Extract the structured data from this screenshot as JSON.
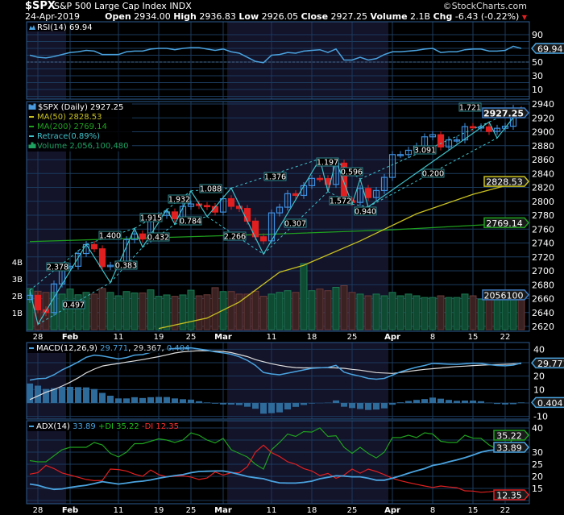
{
  "header": {
    "symbol": "$SPX",
    "name": "S&P 500 Large Cap Index",
    "exchange": "INDX",
    "copyright": "©StockCharts.com",
    "date": "24-Apr-2019",
    "open_label": "Open",
    "open": "2934.00",
    "high_label": "High",
    "high": "2936.83",
    "low_label": "Low",
    "low": "2926.05",
    "close_label": "Close",
    "close": "2927.25",
    "volume_label": "Volume",
    "volume": "2.1B",
    "chg_label": "Chg",
    "chg": "-6.43 (-0.22%)",
    "chg_icon": "down-triangle-icon"
  },
  "chart_data": {
    "type": "candlestick",
    "colors": {
      "up": "#3d8fe0",
      "down": "#e02020",
      "ma50": "#c8c020",
      "ma200": "#1fa01f",
      "retrace": "#3fc1c9",
      "indicator": "#4aa3df",
      "signal": "#dddddd",
      "plus_di": "#1fa01f",
      "minus_di": "#e02020",
      "vol_up": "#0f4a32",
      "vol_down": "#3a2222"
    },
    "dates": [
      "2019-01-25",
      "2019-01-28",
      "2019-01-29",
      "2019-01-30",
      "2019-01-31",
      "2019-02-01",
      "2019-02-04",
      "2019-02-05",
      "2019-02-06",
      "2019-02-07",
      "2019-02-08",
      "2019-02-11",
      "2019-02-12",
      "2019-02-13",
      "2019-02-14",
      "2019-02-15",
      "2019-02-19",
      "2019-02-20",
      "2019-02-21",
      "2019-02-22",
      "2019-02-25",
      "2019-02-26",
      "2019-02-27",
      "2019-02-28",
      "2019-03-01",
      "2019-03-04",
      "2019-03-05",
      "2019-03-06",
      "2019-03-07",
      "2019-03-08",
      "2019-03-11",
      "2019-03-12",
      "2019-03-13",
      "2019-03-14",
      "2019-03-15",
      "2019-03-18",
      "2019-03-19",
      "2019-03-20",
      "2019-03-21",
      "2019-03-22",
      "2019-03-25",
      "2019-03-26",
      "2019-03-27",
      "2019-03-28",
      "2019-03-29",
      "2019-04-01",
      "2019-04-02",
      "2019-04-03",
      "2019-04-04",
      "2019-04-05",
      "2019-04-08",
      "2019-04-09",
      "2019-04-10",
      "2019-04-11",
      "2019-04-12",
      "2019-04-15",
      "2019-04-16",
      "2019-04-17",
      "2019-04-18",
      "2019-04-22",
      "2019-04-23",
      "2019-04-24"
    ],
    "x_ticks": [
      {
        "date": "2019-01-28",
        "label": "28"
      },
      {
        "date": "2019-02-01",
        "label": "Feb"
      },
      {
        "date": "2019-02-11",
        "label": "11"
      },
      {
        "date": "2019-02-19",
        "label": "19"
      },
      {
        "date": "2019-02-25",
        "label": "25"
      },
      {
        "date": "2019-03-01",
        "label": "Mar"
      },
      {
        "date": "2019-03-11",
        "label": "11"
      },
      {
        "date": "2019-03-18",
        "label": "18"
      },
      {
        "date": "2019-03-25",
        "label": "25"
      },
      {
        "date": "2019-04-01",
        "label": "Apr"
      },
      {
        "date": "2019-04-08",
        "label": "8"
      },
      {
        "date": "2019-04-15",
        "label": "15"
      },
      {
        "date": "2019-04-22",
        "label": "22"
      }
    ],
    "rsi": {
      "legend": "RSI(14) 69.94",
      "tag": "69.94",
      "ylim": [
        -5,
        100
      ],
      "ticks": [
        "90",
        "70",
        "50",
        "30",
        "10"
      ],
      "values": [
        60,
        57,
        56,
        58,
        61,
        64,
        65,
        67,
        66,
        61,
        61,
        61,
        65,
        66,
        66,
        69,
        70,
        70,
        68,
        70,
        71,
        71,
        69,
        67,
        69,
        65,
        63,
        57,
        51,
        49,
        60,
        61,
        64,
        63,
        66,
        67,
        68,
        64,
        69,
        53,
        53,
        57,
        53,
        55,
        61,
        65,
        65,
        66,
        67,
        69,
        70,
        64,
        65,
        65,
        68,
        69,
        69,
        66,
        66,
        67,
        73,
        69.94
      ]
    },
    "price": {
      "legend": "$SPX (Daily) 2927.25",
      "tag": "2927.25",
      "ylim": [
        2615,
        2945
      ],
      "ticks": [
        "2940",
        "2920",
        "2900",
        "2880",
        "2860",
        "2840",
        "2820",
        "2800",
        "2780",
        "2760",
        "2740",
        "2720",
        "2700",
        "2680",
        "2660",
        "2640",
        "2620"
      ],
      "close": [
        2664.76,
        2643.85,
        2640.0,
        2681.05,
        2704.1,
        2706.53,
        2724.87,
        2737.7,
        2731.61,
        2706.05,
        2707.88,
        2709.8,
        2744.73,
        2753.03,
        2745.73,
        2775.6,
        2779.76,
        2784.7,
        2774.88,
        2792.67,
        2796.11,
        2793.9,
        2792.38,
        2784.49,
        2803.69,
        2792.81,
        2789.65,
        2771.45,
        2748.93,
        2743.07,
        2783.3,
        2791.52,
        2810.92,
        2808.48,
        2822.48,
        2832.94,
        2832.57,
        2824.23,
        2854.88,
        2800.71,
        2798.36,
        2818.46,
        2805.37,
        2815.44,
        2834.4,
        2867.19,
        2867.24,
        2873.4,
        2879.39,
        2892.74,
        2895.77,
        2878.2,
        2888.21,
        2888.32,
        2907.41,
        2905.58,
        2907.06,
        2900.45,
        2905.03,
        2907.97,
        2933.68,
        2927.25
      ]
    },
    "ma50": {
      "legend": "MA(50) 2828.53",
      "tag": "2828.53",
      "points": [
        [
          "2019-02-19",
          2617
        ],
        [
          "2019-02-27",
          2632
        ],
        [
          "2019-03-05",
          2655
        ],
        [
          "2019-03-12",
          2698
        ],
        [
          "2019-03-15",
          2708
        ],
        [
          "2019-03-26",
          2743
        ],
        [
          "2019-04-04",
          2782
        ],
        [
          "2019-04-15",
          2810
        ],
        [
          "2019-04-24",
          2828.53
        ]
      ]
    },
    "ma200": {
      "legend": "MA(200) 2769.14",
      "tag": "2769.14",
      "points": [
        [
          "2019-01-25",
          2742
        ],
        [
          "2019-03-12",
          2753
        ],
        [
          "2019-04-01",
          2759
        ],
        [
          "2019-04-24",
          2769.14
        ]
      ]
    },
    "retrace": {
      "legend": "Retrace(0.89%)",
      "pivots": [
        [
          "2019-01-25",
          2672
        ],
        [
          "2019-01-28",
          2623
        ],
        [
          "2019-02-05",
          2738
        ],
        [
          "2019-02-08",
          2683
        ],
        [
          "2019-02-13",
          2761
        ],
        [
          "2019-02-14",
          2734
        ],
        [
          "2019-02-20",
          2788
        ],
        [
          "2019-02-21",
          2767
        ],
        [
          "2019-02-25",
          2815
        ],
        [
          "2019-02-27",
          2778
        ],
        [
          "2019-03-04",
          2819
        ],
        [
          "2019-03-08",
          2724
        ],
        [
          "2019-03-19",
          2861
        ],
        [
          "2019-03-20",
          2814
        ],
        [
          "2019-03-21",
          2858
        ],
        [
          "2019-03-25",
          2796
        ],
        [
          "2019-03-26",
          2832
        ],
        [
          "2019-03-27",
          2792
        ],
        [
          "2019-04-17",
          2914
        ],
        [
          "2019-04-18",
          2891
        ],
        [
          "2019-04-24",
          2935
        ]
      ],
      "labels": [
        "2.378",
        "0.497",
        "1.400",
        "0.383",
        "1.915",
        "0.432",
        "1.932",
        "0.784",
        "1.088",
        "2.266",
        "1.376",
        "0.307",
        "1.197",
        "0.596",
        "1.572",
        "0.940",
        "3.091",
        "0.200",
        "1.721"
      ]
    },
    "volume": {
      "legend": "Volume 2,056,100,480",
      "tag": "2056100",
      "unit": "B",
      "ticks": [
        "4B",
        "3B",
        "2B",
        "1B"
      ],
      "values": [
        2.43,
        2.27,
        2.2,
        2.2,
        2.1,
        2.4,
        2.06,
        2.2,
        2.1,
        2.43,
        2.2,
        2.0,
        2.25,
        2.17,
        2.17,
        2.35,
        1.97,
        2.05,
        1.97,
        2.05,
        2.33,
        2.0,
        2.06,
        2.48,
        2.25,
        2.25,
        2.1,
        2.1,
        2.27,
        1.97,
        2.1,
        2.2,
        2.3,
        2.2,
        3.9,
        2.3,
        2.4,
        2.3,
        2.5,
        2.6,
        2.2,
        2.1,
        2.0,
        2.1,
        2.0,
        2.2,
        2.0,
        2.1,
        2.0,
        1.9,
        1.9,
        2.0,
        1.9,
        1.9,
        2.1,
        2.0,
        1.8,
        2.3,
        2.1,
        2.0,
        2.3,
        2.056
      ]
    },
    "macd": {
      "legend": "MACD(12,26,9)",
      "macd_value": "29.771",
      "signal_value": "29.367",
      "hist_value": "0.404",
      "tag": "29.771",
      "hist_tag": "0.404",
      "ticks": [
        "40",
        "20",
        "10",
        "-10"
      ],
      "macd": [
        17,
        18.1,
        18.4,
        21,
        24.6,
        27.4,
        30.5,
        34,
        35.6,
        35,
        33.9,
        32.8,
        33.8,
        35.6,
        36,
        37.7,
        39,
        40.2,
        40.6,
        40.9,
        41,
        40.2,
        39.2,
        38.1,
        37.3,
        36.3,
        34.4,
        31.7,
        28,
        22.7,
        21.6,
        21,
        22.2,
        23.4,
        24.6,
        25.8,
        26.2,
        26.5,
        28,
        23,
        21.2,
        19.9,
        18.3,
        17.7,
        18.3,
        20.7,
        23.2,
        25,
        26.6,
        27.9,
        29.5,
        29.2,
        28.9,
        28.7,
        29.2,
        29.6,
        29.4,
        28.6,
        27.9,
        27.7,
        28.2,
        29.771
      ],
      "signal": [
        2.5,
        5.2,
        8,
        10,
        12.6,
        15.4,
        18.7,
        22.4,
        25.2,
        27.5,
        28.5,
        29.4,
        30.4,
        31.3,
        32.3,
        33.4,
        34.5,
        35.8,
        37.2,
        38.1,
        38.5,
        38.9,
        38.8,
        38.6,
        38.4,
        37.5,
        36,
        34.5,
        32.3,
        30.7,
        29.2,
        28,
        27,
        26.3,
        26.1,
        26.2,
        26.3,
        26.3,
        26.1,
        25.8,
        25,
        24.4,
        23.5,
        22.6,
        22.3,
        22,
        22.7,
        23.5,
        24.3,
        25,
        25.5,
        26,
        26.6,
        27.1,
        27.4,
        27.8,
        28.1,
        28.4,
        28.6,
        28.8,
        29.1,
        29.367
      ]
    },
    "adx": {
      "legend": "ADX(14)",
      "adx_value": "33.89",
      "plus_di_label": "+DI 35.22",
      "minus_di_label": "-DI 12.35",
      "adx_tag": "33.89",
      "plus_tag": "35.22",
      "minus_tag": "12.35",
      "ticks": [
        "40",
        "30",
        "25",
        "20",
        "15"
      ],
      "adx": [
        16.8,
        16.3,
        15.3,
        14.6,
        14.8,
        15.4,
        15.9,
        16.3,
        17,
        17.8,
        17.3,
        16.8,
        17.2,
        17.7,
        18,
        18.5,
        19.2,
        19.8,
        20.3,
        20.7,
        21.5,
        22,
        22.1,
        22.2,
        22.2,
        21.6,
        20.8,
        19.9,
        19.4,
        19,
        18,
        17.3,
        17.2,
        17.2,
        17.5,
        18,
        19,
        19.6,
        20.2,
        20.1,
        19.8,
        19.8,
        19.2,
        18.4,
        18.4,
        19.2,
        20.2,
        21.3,
        22.3,
        23.2,
        24.5,
        25.1,
        26,
        26.8,
        27.7,
        28.8,
        30,
        30.7,
        31,
        31.5,
        32.3,
        33.89
      ],
      "plus_di": [
        26.5,
        26,
        26,
        28.5,
        31,
        32,
        32,
        32,
        34,
        33,
        29.5,
        28,
        30,
        33.5,
        33.5,
        34.5,
        35.5,
        35,
        34,
        35,
        38,
        37,
        35,
        33.8,
        35.7,
        31,
        29.5,
        28,
        25,
        23,
        31,
        34,
        37.5,
        36.5,
        38.5,
        38.3,
        40,
        36.5,
        36.8,
        32,
        29.5,
        32,
        29.5,
        27.6,
        30,
        36,
        36,
        37,
        36,
        38,
        37.5,
        34.5,
        34,
        34,
        37,
        35.8,
        35.7,
        33,
        31.2,
        30.2,
        36,
        35.22
      ],
      "minus_di": [
        20.9,
        21.5,
        24.5,
        23.2,
        21.4,
        20.5,
        19.6,
        18.7,
        18.2,
        18.3,
        23,
        22.8,
        22.2,
        20.9,
        20,
        22.6,
        20.7,
        19.8,
        20,
        20.2,
        19.7,
        18.7,
        19.3,
        21.8,
        20.5,
        21.5,
        21.5,
        24,
        30,
        32.9,
        29.8,
        28.2,
        26,
        25,
        23.2,
        22.2,
        20.3,
        21.2,
        19.2,
        20.5,
        23,
        21.3,
        23,
        22,
        20.7,
        19.2,
        18.2,
        17.4,
        16.7,
        16,
        15.4,
        16,
        15.6,
        15.3,
        14,
        13.9,
        13.4,
        13.6,
        14,
        13.4,
        12,
        12.35
      ]
    }
  }
}
